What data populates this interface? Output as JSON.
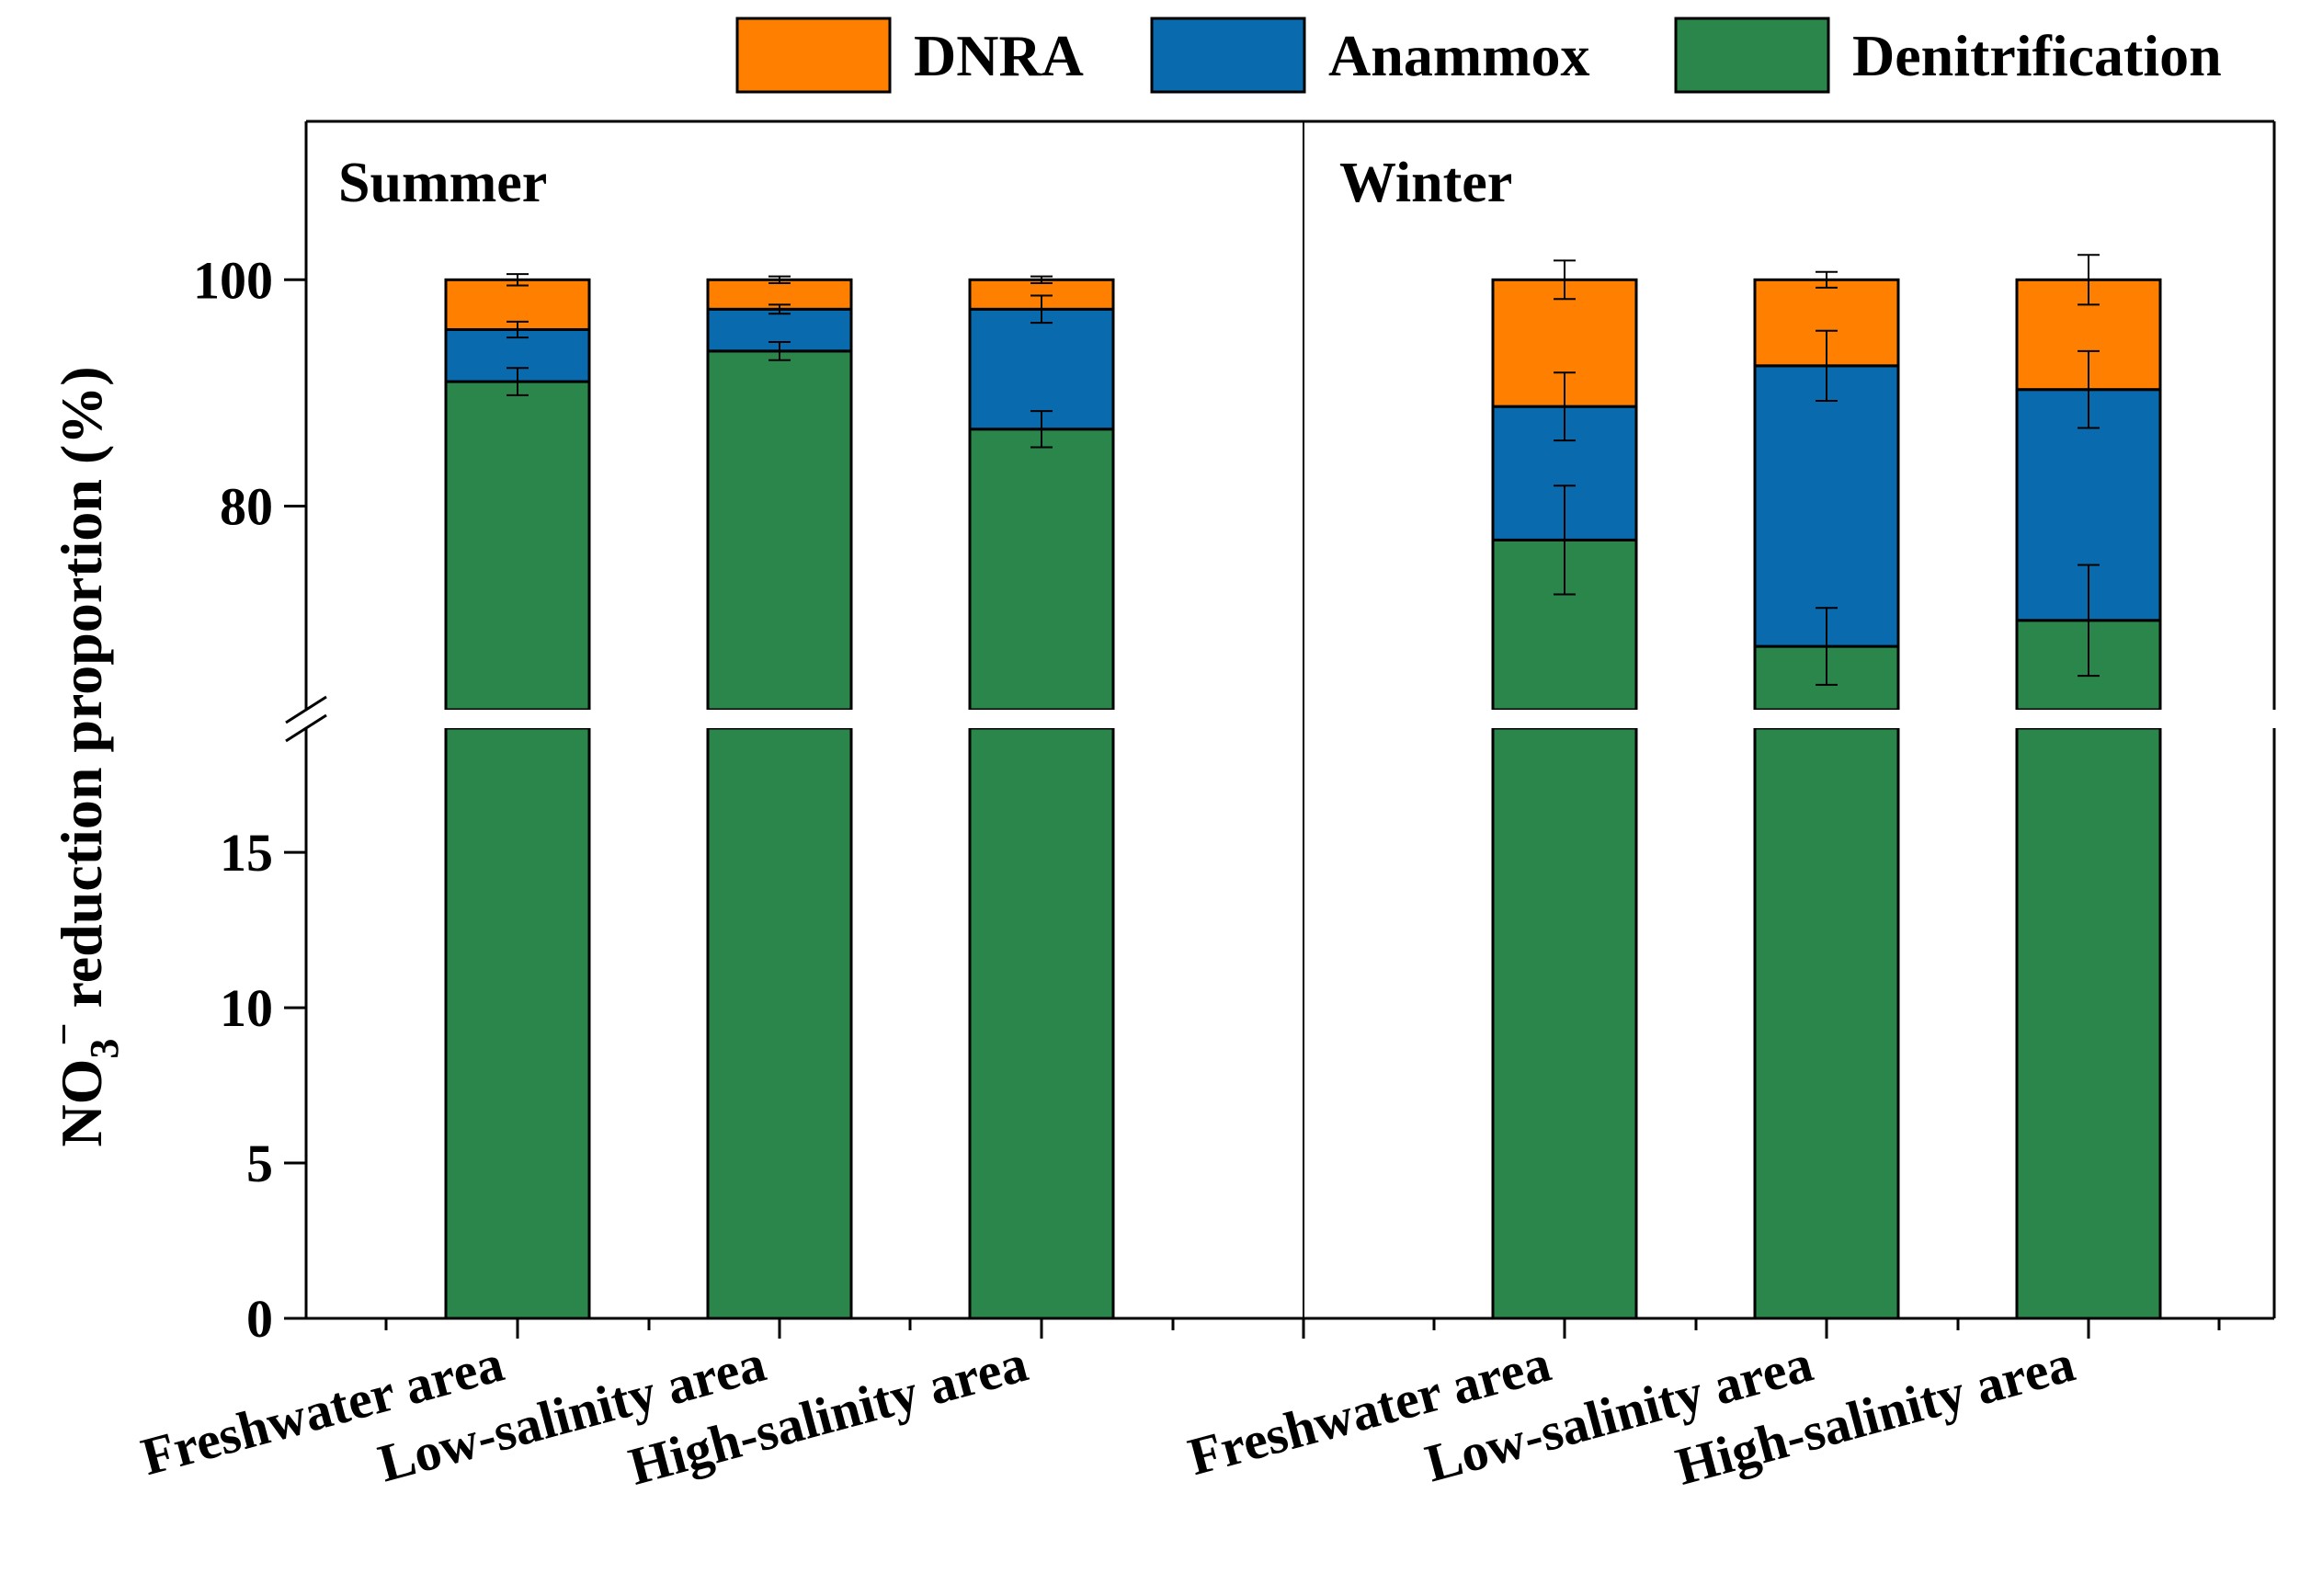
{
  "chart_data": {
    "type": "bar",
    "stacked": true,
    "ylabel": "NO3 reduction proportion (%)",
    "ylabel_parts": {
      "main": "NO",
      "sub": "3",
      "sup": "−",
      "rest": " reduction proportion (%)"
    },
    "y_axis_break": {
      "lower_range": [
        0,
        19
      ],
      "upper_range": [
        62,
        114
      ]
    },
    "yticks_lower": [
      0,
      5,
      10,
      15
    ],
    "yticks_upper": [
      80,
      100
    ],
    "categories": [
      "Freshwater area",
      "Low-salinity area",
      "High-salinity area",
      "Freshwater area",
      "Low-salinity area",
      "High-salinity area"
    ],
    "panels": [
      {
        "label": "Summer",
        "category_indices": [
          0,
          1,
          2
        ]
      },
      {
        "label": "Winter",
        "category_indices": [
          3,
          4,
          5
        ]
      }
    ],
    "series": [
      {
        "name": "Denitrification",
        "color": "#2b864c",
        "values": [
          91.0,
          93.7,
          86.8,
          77.0,
          67.6,
          69.9
        ],
        "errors": [
          1.2,
          0.8,
          1.6,
          4.8,
          3.4,
          4.9
        ]
      },
      {
        "name": "Anammox",
        "color": "#0a6aae",
        "values": [
          4.6,
          3.7,
          10.6,
          11.8,
          24.8,
          20.4
        ],
        "errors": [
          0.7,
          0.4,
          1.2,
          3.0,
          3.1,
          3.4
        ]
      },
      {
        "name": "DNRA",
        "color": "#ff8000",
        "values": [
          4.4,
          2.6,
          2.6,
          11.2,
          7.6,
          9.7
        ],
        "errors": [
          0.5,
          0.3,
          0.3,
          1.7,
          0.7,
          2.2
        ]
      }
    ],
    "legend": {
      "position": "top-right",
      "order": [
        "DNRA",
        "Anammox",
        "Denitrification"
      ]
    }
  }
}
